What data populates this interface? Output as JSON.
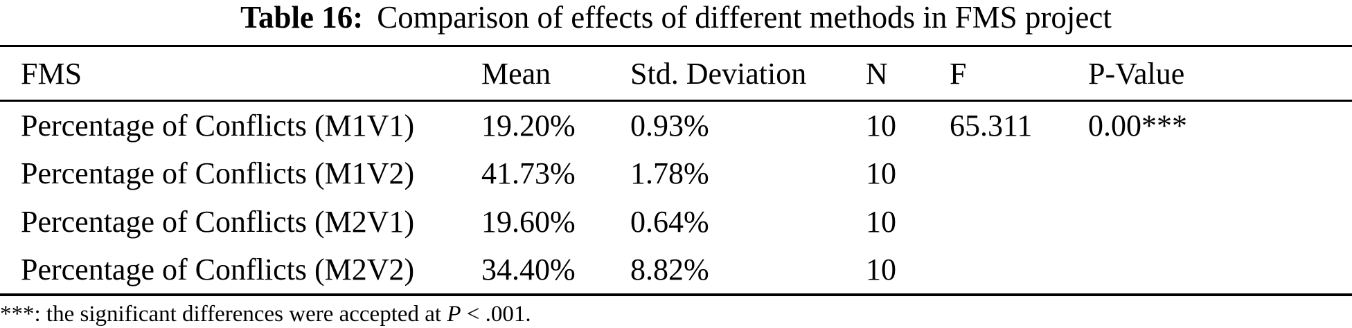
{
  "caption": {
    "label": "Table 16:",
    "text": "Comparison of effects of different methods in FMS project"
  },
  "table": {
    "columns": [
      "FMS",
      "Mean",
      "Std. Deviation",
      "N",
      "F",
      "P-Value"
    ],
    "rows": [
      {
        "fms": "Percentage of Conflicts (M1V1)",
        "mean": "19.20%",
        "std": "0.93%",
        "n": "10",
        "f": "65.311",
        "p": "0.00***"
      },
      {
        "fms": "Percentage of Conflicts (M1V2)",
        "mean": "41.73%",
        "std": "1.78%",
        "n": "10",
        "f": "",
        "p": ""
      },
      {
        "fms": "Percentage of Conflicts (M2V1)",
        "mean": "19.60%",
        "std": "0.64%",
        "n": "10",
        "f": "",
        "p": ""
      },
      {
        "fms": "Percentage of Conflicts (M2V2)",
        "mean": "34.40%",
        "std": "8.82%",
        "n": "10",
        "f": "",
        "p": ""
      }
    ]
  },
  "footnote": {
    "marker": "***",
    "pre": ": the significant differences were accepted at ",
    "p_symbol": "P",
    "post": " < .001."
  },
  "colors": {
    "text": "#000000",
    "background": "#ffffff",
    "rule": "#000000"
  }
}
